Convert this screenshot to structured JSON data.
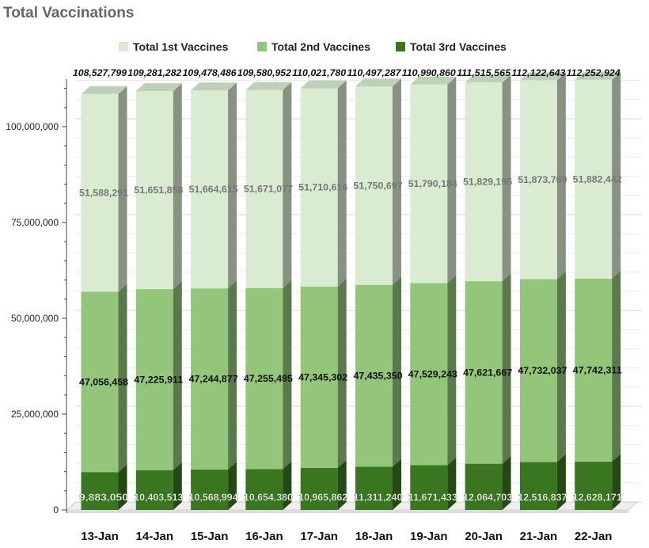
{
  "chart_data": {
    "type": "bar",
    "stacked": true,
    "title": "Total Vaccinations",
    "categories": [
      "13-Jan",
      "14-Jan",
      "15-Jan",
      "16-Jan",
      "17-Jan",
      "18-Jan",
      "19-Jan",
      "20-Jan",
      "21-Jan",
      "22-Jan"
    ],
    "series": [
      {
        "name": "Total 3rd Vaccines",
        "color": "#3a7520",
        "values": [
          9883050,
          10403513,
          10568994,
          10654380,
          10965862,
          11311240,
          11671433,
          12064703,
          12516837,
          12628171
        ],
        "labels": [
          "9,883,050",
          "10,403,513",
          "10,568,994",
          "10,654,380",
          "10,965,862",
          "11,311,240",
          "11,671,433",
          "12,064,703",
          "12,516,837",
          "12,628,171"
        ]
      },
      {
        "name": "Total 2nd Vaccines",
        "color": "#93c57a",
        "values": [
          47056458,
          47225911,
          47244877,
          47255495,
          47345302,
          47435350,
          47529243,
          47621667,
          47732037,
          47742311
        ],
        "labels": [
          "47,056,458",
          "47,225,911",
          "47,244,877",
          "47,255,495",
          "47,345,302",
          "47,435,350",
          "47,529,243",
          "47,621,667",
          "47,732,037",
          "47,742,311"
        ]
      },
      {
        "name": "Total 1st Vaccines",
        "color": "#d9ecd2",
        "values": [
          51588291,
          51651858,
          51664615,
          51671077,
          51710616,
          51750697,
          51790184,
          51829195,
          51873769,
          51882442
        ],
        "labels": [
          "51,588,291",
          "51,651,858",
          "51,664,615",
          "51,671,077",
          "51,710,616",
          "51,750,697",
          "51,790,184",
          "51,829,195",
          "51,873,769",
          "51,882,442"
        ]
      }
    ],
    "legend": [
      "Total 1st Vaccines",
      "Total 2nd Vaccines",
      "Total 3rd Vaccines"
    ],
    "legend_position": "top",
    "totals": [
      108527799,
      109281282,
      109478486,
      109580952,
      110021780,
      110497287,
      110990860,
      111515565,
      112122643,
      112252924
    ],
    "total_labels": [
      "108,527,799",
      "109,281,282",
      "109,478,486",
      "109,580,952",
      "110,021,780",
      "110,497,287",
      "110,990,860",
      "111,515,565",
      "112,122,643",
      "112,252,924"
    ],
    "ylim": [
      0,
      112500000
    ],
    "yticks": [
      0,
      25000000,
      50000000,
      75000000,
      100000000
    ],
    "ytick_labels": [
      "0",
      "25,000,000",
      "50,000,000",
      "75,000,000",
      "100,000,000"
    ],
    "xlabel": "",
    "ylabel": "",
    "grid": true
  }
}
